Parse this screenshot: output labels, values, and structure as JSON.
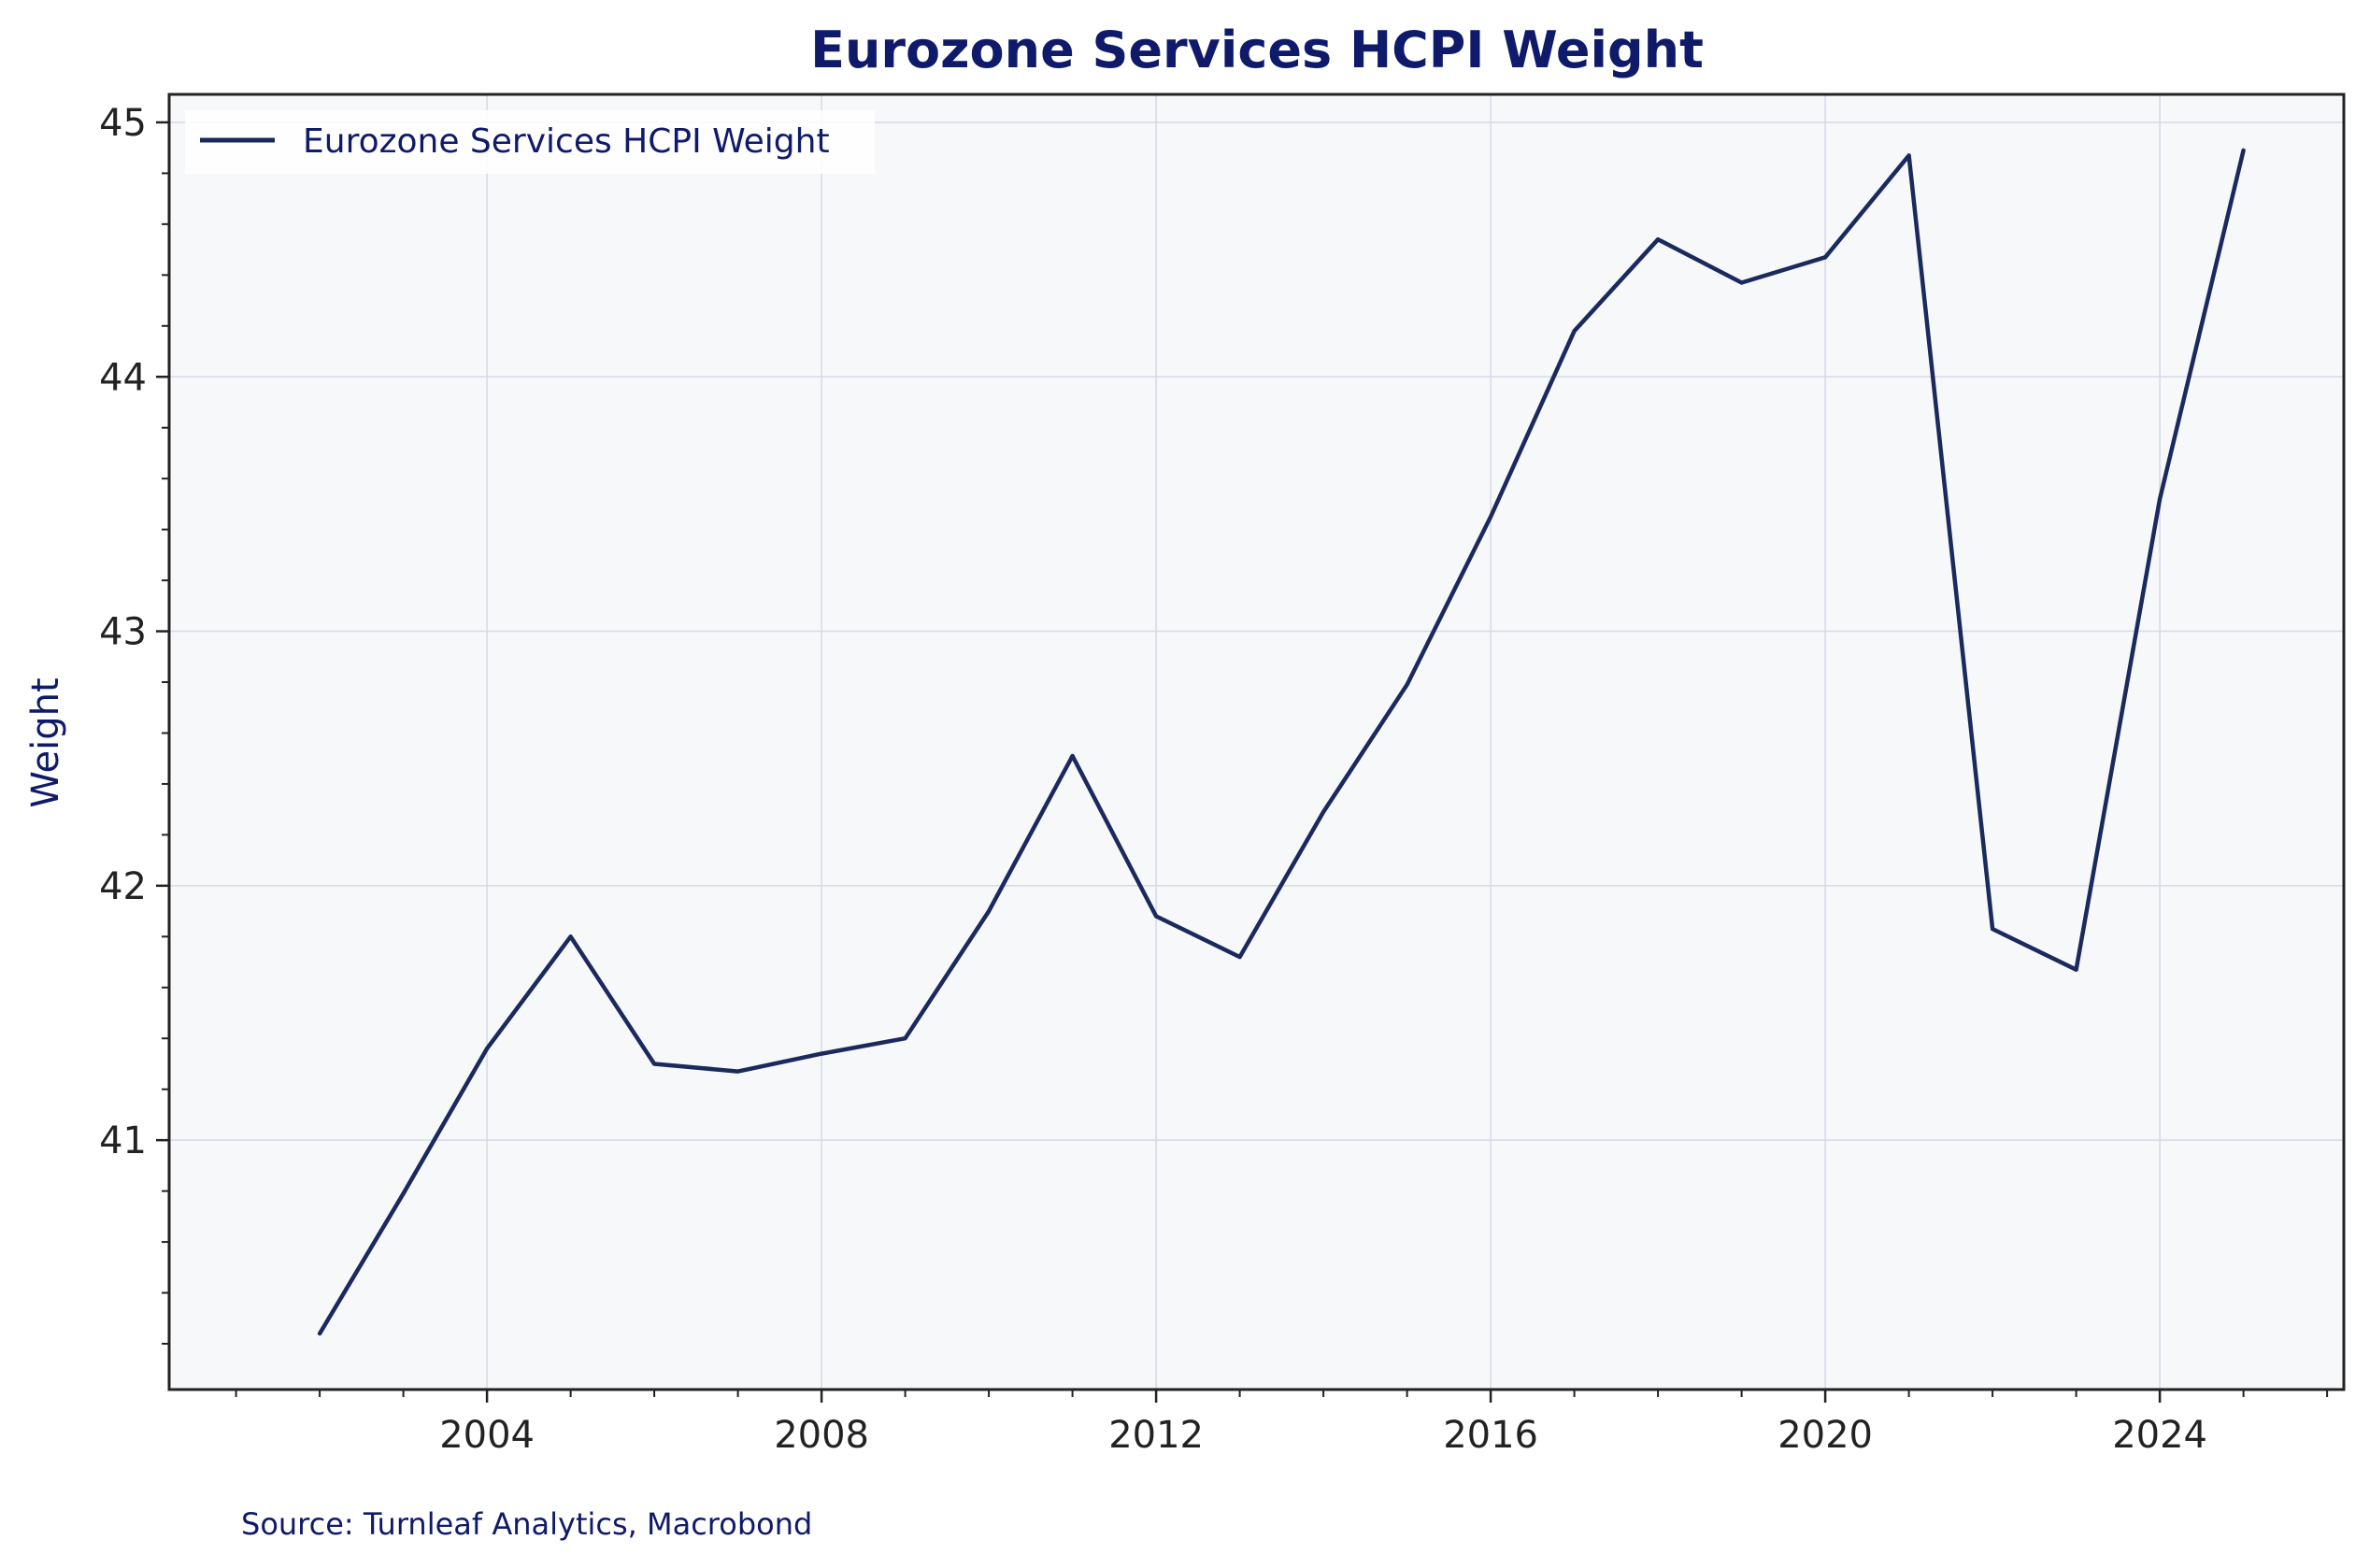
{
  "chart_data": {
    "type": "line",
    "title": "Eurozone Services HCPI Weight",
    "xlabel": "",
    "ylabel": "Weight",
    "source": "Source: Turnleaf Analytics, Macrobond",
    "xlim": [
      2000.2,
      2026.2
    ],
    "ylim": [
      40.02,
      45.11
    ],
    "x_ticks": [
      2004,
      2008,
      2012,
      2016,
      2020,
      2024
    ],
    "x_tick_labels": [
      "2004",
      "2008",
      "2012",
      "2016",
      "2020",
      "2024"
    ],
    "y_ticks": [
      41,
      42,
      43,
      44,
      45
    ],
    "y_tick_labels": [
      "41",
      "42",
      "43",
      "44",
      "45"
    ],
    "grid": true,
    "legend_position": "top-left",
    "colors": {
      "line": "#1b2a5e",
      "plot_background": "#f6f8fa",
      "grid": "#d5d9e6",
      "title": "#0f1a6b",
      "axis": "#222222"
    },
    "series": [
      {
        "name": "Eurozone Services HCPI Weight",
        "x": [
          2002,
          2003,
          2004,
          2005,
          2006,
          2007,
          2008,
          2009,
          2010,
          2011,
          2012,
          2013,
          2014,
          2015,
          2016,
          2017,
          2018,
          2019,
          2020,
          2021,
          2022,
          2023,
          2024,
          2025
        ],
        "values": [
          40.24,
          40.79,
          41.36,
          41.8,
          41.3,
          41.27,
          41.34,
          41.4,
          41.9,
          42.51,
          41.88,
          41.72,
          42.29,
          42.79,
          43.45,
          44.18,
          44.54,
          44.37,
          44.47,
          44.87,
          41.83,
          41.67,
          43.52,
          44.89
        ]
      }
    ]
  }
}
